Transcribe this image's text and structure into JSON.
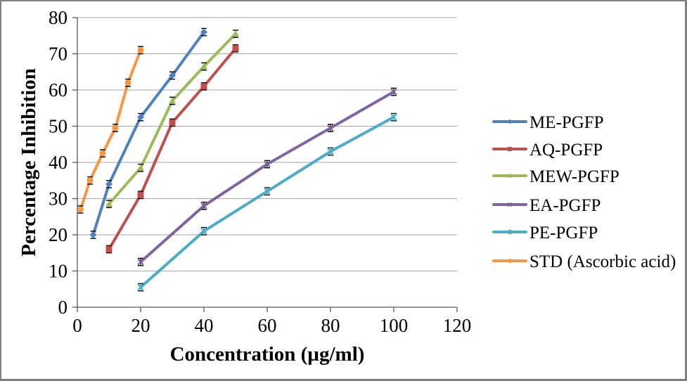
{
  "frame": {
    "background": "#FFFFFF",
    "border_color": "#808080",
    "gridline_color": "#A6A6A6",
    "axis_color": "#595959",
    "error_bar_color": "#000000"
  },
  "chart_data": {
    "type": "line",
    "title": "",
    "xlabel": "Concentration (µg/ml)",
    "ylabel": "Percentage Inhibition",
    "xlim": [
      0,
      120
    ],
    "ylim": [
      0,
      80
    ],
    "x_ticks": [
      0,
      20,
      40,
      60,
      80,
      100,
      120
    ],
    "y_ticks": [
      0,
      10,
      20,
      30,
      40,
      50,
      60,
      70,
      80
    ],
    "grid": "horizontal-only",
    "legend_position": "right-outside",
    "error_bar_size": 1,
    "series": [
      {
        "name": "ME-PGFP",
        "color": "#4F81BD",
        "marker": "diamond",
        "x": [
          5,
          10,
          20,
          30,
          40
        ],
        "y": [
          20,
          34,
          52.5,
          64,
          76
        ]
      },
      {
        "name": "AQ-PGFP",
        "color": "#C0504D",
        "marker": "square",
        "x": [
          10,
          20,
          30,
          40,
          50
        ],
        "y": [
          16,
          31,
          51,
          61,
          71.5
        ]
      },
      {
        "name": "MEW-PGFP",
        "color": "#9BBB59",
        "marker": "triangle",
        "x": [
          10,
          20,
          30,
          40,
          50
        ],
        "y": [
          28.5,
          38.5,
          57,
          66.5,
          75.5
        ]
      },
      {
        "name": "EA-PGFP",
        "color": "#8064A2",
        "marker": "x",
        "x": [
          20,
          40,
          60,
          80,
          100
        ],
        "y": [
          12.5,
          28,
          39.5,
          49.5,
          59.5
        ]
      },
      {
        "name": "PE-PGFP",
        "color": "#4BACC6",
        "marker": "asterisk",
        "x": [
          20,
          40,
          60,
          80,
          100
        ],
        "y": [
          5.5,
          21,
          32,
          43,
          52.5
        ]
      },
      {
        "name": "STD (Ascorbic acid)",
        "color": "#F79646",
        "marker": "circle",
        "x": [
          1,
          4,
          8,
          12,
          16,
          20
        ],
        "y": [
          27,
          35,
          42.5,
          49.5,
          62,
          71
        ]
      }
    ]
  }
}
